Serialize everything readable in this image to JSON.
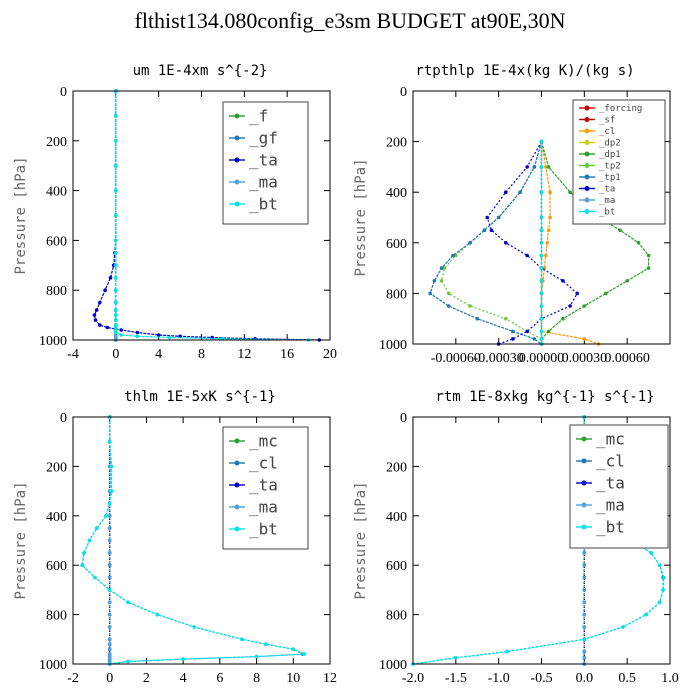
{
  "title": "flthist134.080config_e3sm  BUDGET at90E,30N",
  "chart_data": [
    {
      "type": "line",
      "title": "um  1E-4xm s^{-2}",
      "ylabel": "Pressure [hPa]",
      "xlim": [
        -4,
        20
      ],
      "ylim": [
        1000,
        0
      ],
      "xticks": [
        -4,
        0,
        4,
        8,
        12,
        16,
        20
      ],
      "xtick_labels": [
        "-4",
        "0",
        "4",
        "8",
        "12",
        "16",
        "20"
      ],
      "yticks": [
        0,
        200,
        400,
        600,
        800,
        1000
      ],
      "ytick_labels": [
        "0",
        "200",
        "400",
        "600",
        "800",
        "1000"
      ],
      "legend_position": "top-right",
      "pressure": [
        0,
        100,
        200,
        300,
        400,
        500,
        600,
        650,
        700,
        750,
        800,
        850,
        880,
        900,
        920,
        940,
        950,
        960,
        970,
        980,
        985,
        990,
        995,
        1000
      ],
      "series": [
        {
          "name": "_f",
          "color": "#2ca02c",
          "values": [
            0,
            0,
            0,
            0,
            0,
            0,
            0,
            0,
            0,
            0,
            0,
            0,
            0,
            0,
            0,
            0,
            0,
            0,
            0,
            0,
            0,
            0,
            0,
            0
          ]
        },
        {
          "name": "_gf",
          "color": "#1f77b4",
          "values": [
            0,
            0,
            0,
            0,
            0,
            0,
            0,
            0,
            0,
            0,
            0,
            0,
            0,
            0,
            0,
            0,
            0,
            0,
            0,
            0,
            0,
            0,
            0,
            0
          ]
        },
        {
          "name": "_ta",
          "color": "#0000cc",
          "values": [
            0,
            0,
            0,
            0,
            0,
            0,
            0,
            -0.1,
            -0.2,
            -0.5,
            -1.0,
            -1.5,
            -1.8,
            -2.0,
            -1.9,
            -1.5,
            -0.8,
            0.5,
            2.0,
            4.0,
            6.0,
            9.0,
            13.0,
            19.0
          ]
        },
        {
          "name": "_ma",
          "color": "#4fa3d9",
          "values": [
            0,
            0,
            0,
            0,
            0,
            0,
            0,
            0,
            0,
            0,
            0,
            0,
            0,
            0,
            0,
            0,
            0,
            0,
            0,
            0,
            0,
            0,
            0,
            0
          ]
        },
        {
          "name": "_bt",
          "color": "#00e5e5",
          "values": [
            0,
            0,
            0,
            0,
            0,
            0,
            0,
            0,
            0,
            0,
            0,
            0,
            0,
            0,
            0,
            0,
            0,
            0,
            0,
            0.5,
            2.0,
            5.0,
            10.0,
            18.0
          ]
        }
      ]
    },
    {
      "type": "line",
      "title": "rtpthlp  1E-4x(kg K)/(kg s)",
      "ylabel": "Pressure [hPa]",
      "xlim": [
        -0.0009,
        0.0009
      ],
      "ylim": [
        1000,
        0
      ],
      "xticks": [
        -0.0006,
        -0.0003,
        0,
        0.0003,
        0.0006
      ],
      "xtick_labels": [
        "-0.00060",
        "-0.00030",
        "0.00000",
        "0.00030",
        "0.00060"
      ],
      "yticks": [
        0,
        200,
        400,
        600,
        800,
        1000
      ],
      "ytick_labels": [
        "0",
        "200",
        "400",
        "600",
        "800",
        "1000"
      ],
      "legend_position": "top-right",
      "pressure": [
        200,
        300,
        400,
        500,
        550,
        600,
        650,
        700,
        750,
        800,
        850,
        900,
        950,
        980,
        1000
      ],
      "series": [
        {
          "name": "_forcing",
          "color": "#cc0000",
          "values": [
            0,
            0,
            0,
            0,
            0,
            0,
            0,
            0,
            0,
            0,
            0,
            0,
            0,
            0,
            0
          ]
        },
        {
          "name": "_sf",
          "color": "#cc0000",
          "values": [
            0,
            0,
            0,
            0,
            0,
            0,
            0,
            0,
            0,
            0,
            0,
            0,
            0,
            0,
            0
          ]
        },
        {
          "name": "_cl",
          "color": "#ff9900",
          "values": [
            0,
            3e-05,
            6e-05,
            6e-05,
            5e-05,
            4e-05,
            3e-05,
            2e-05,
            1e-05,
            0,
            0,
            0,
            0,
            0.0003,
            0.0004
          ]
        },
        {
          "name": "_dp2",
          "color": "#cccc00",
          "values": [
            0,
            0,
            0,
            0,
            0,
            0,
            0,
            0,
            0,
            0,
            0,
            0,
            0,
            0,
            0
          ]
        },
        {
          "name": "_dp1",
          "color": "#2ca02c",
          "values": [
            0,
            5e-05,
            0.0002,
            0.0004,
            0.00055,
            0.00068,
            0.00075,
            0.00075,
            0.0006,
            0.00045,
            0.0003,
            0.00015,
            5e-05,
            0,
            0
          ]
        },
        {
          "name": "_tp2",
          "color": "#66cc33",
          "values": [
            0,
            -5e-05,
            -0.00015,
            -0.0003,
            -0.0004,
            -0.0005,
            -0.0006,
            -0.00068,
            -0.0007,
            -0.00065,
            -0.0005,
            -0.00025,
            -0.0001,
            0,
            0
          ]
        },
        {
          "name": "_tp1",
          "color": "#1f77b4",
          "values": [
            0,
            -5e-05,
            -0.00015,
            -0.0003,
            -0.0004,
            -0.0005,
            -0.00062,
            -0.0007,
            -0.00075,
            -0.00078,
            -0.00065,
            -0.00045,
            -0.0002,
            -5e-05,
            0
          ]
        },
        {
          "name": "_ta",
          "color": "#0000cc",
          "values": [
            0,
            -0.0001,
            -0.00025,
            -0.00038,
            -0.00035,
            -0.00025,
            -0.0001,
            0,
            0.00015,
            0.00025,
            0.0002,
            0,
            -0.0001,
            -0.0002,
            -0.0003
          ]
        },
        {
          "name": "_ma",
          "color": "#4fa3d9",
          "values": [
            0,
            0,
            0,
            0,
            0,
            0,
            0,
            0,
            0,
            0,
            0,
            0,
            0,
            0,
            0
          ]
        },
        {
          "name": "_bt",
          "color": "#00e5e5",
          "values": [
            0,
            0,
            0,
            0,
            0,
            0,
            0,
            0,
            0,
            0,
            0,
            0,
            0,
            0,
            0
          ]
        }
      ]
    },
    {
      "type": "line",
      "title": "thlm  1E-5xK s^{-1}",
      "ylabel": "Pressure [hPa]",
      "xlim": [
        -2,
        12
      ],
      "ylim": [
        1000,
        0
      ],
      "xticks": [
        -2,
        0,
        2,
        4,
        6,
        8,
        10,
        12
      ],
      "xtick_labels": [
        "-2",
        "0",
        "2",
        "4",
        "6",
        "8",
        "10",
        "12"
      ],
      "yticks": [
        0,
        200,
        400,
        600,
        800,
        1000
      ],
      "ytick_labels": [
        "0",
        "200",
        "400",
        "600",
        "800",
        "1000"
      ],
      "legend_position": "top-right",
      "pressure": [
        0,
        100,
        200,
        300,
        350,
        400,
        450,
        500,
        550,
        600,
        650,
        700,
        750,
        800,
        850,
        900,
        920,
        940,
        960,
        970,
        980,
        990,
        1000
      ],
      "series": [
        {
          "name": "_mc",
          "color": "#2ca02c",
          "values": [
            0,
            0,
            0,
            0,
            0,
            0,
            0,
            0,
            0,
            0,
            0,
            0,
            0,
            0,
            0,
            0,
            0,
            0,
            0,
            0,
            0,
            0,
            0
          ]
        },
        {
          "name": "_cl",
          "color": "#1f77b4",
          "values": [
            0,
            0,
            0.1,
            0.1,
            0,
            -0.2,
            -0.7,
            -1.1,
            -1.4,
            -1.5,
            -0.8,
            0,
            1.0,
            2.6,
            4.6,
            7.2,
            8.5,
            10.0,
            10.5,
            8.0,
            4.0,
            1.0,
            0
          ]
        },
        {
          "name": "_ta",
          "color": "#0000cc",
          "values": [
            0,
            0,
            0,
            0,
            0,
            0,
            0,
            0,
            0,
            0,
            0,
            0,
            0,
            0,
            0,
            0,
            0,
            0,
            0,
            0,
            0,
            0,
            0
          ]
        },
        {
          "name": "_ma",
          "color": "#4fa3d9",
          "values": [
            0,
            0,
            0,
            0,
            0,
            0,
            0,
            0,
            0,
            0,
            0,
            0,
            0,
            0,
            0,
            0,
            0,
            0,
            0,
            0,
            0,
            0,
            0
          ]
        },
        {
          "name": "_bt",
          "color": "#00e5e5",
          "values": [
            0,
            0,
            0.1,
            0.1,
            0,
            -0.2,
            -0.7,
            -1.1,
            -1.4,
            -1.5,
            -0.8,
            0,
            1.0,
            2.6,
            4.6,
            7.2,
            8.5,
            10.0,
            10.6,
            8.0,
            4.0,
            1.0,
            0
          ]
        }
      ]
    },
    {
      "type": "line",
      "title": "rtm  1E-8xkg kg^{-1} s^{-1}",
      "ylabel": "Pressure [hPa]",
      "xlim": [
        -2.0,
        1.0
      ],
      "ylim": [
        1000,
        0
      ],
      "xticks": [
        -2.0,
        -1.5,
        -1.0,
        -0.5,
        0.0,
        0.5,
        1.0
      ],
      "xtick_labels": [
        "-2.0",
        "-1.5",
        "-1.0",
        "-0.5",
        "0.0",
        "0.5",
        "1.0"
      ],
      "yticks": [
        0,
        200,
        400,
        600,
        800,
        1000
      ],
      "ytick_labels": [
        "0",
        "200",
        "400",
        "600",
        "800",
        "1000"
      ],
      "legend_position": "top-right",
      "pressure": [
        0,
        100,
        150,
        200,
        250,
        300,
        350,
        400,
        450,
        500,
        550,
        600,
        650,
        700,
        750,
        800,
        850,
        900,
        950,
        975,
        1000
      ],
      "series": [
        {
          "name": "_mc",
          "color": "#2ca02c",
          "values": [
            0,
            0,
            0,
            0,
            0,
            0,
            0,
            0,
            0,
            0,
            0,
            0,
            0,
            0,
            0,
            0,
            0,
            0,
            0,
            0,
            0
          ]
        },
        {
          "name": "_cl",
          "color": "#1f77b4",
          "values": [
            0,
            0,
            0.02,
            0.06,
            0.04,
            0.05,
            0.08,
            0.15,
            0.3,
            0.55,
            0.78,
            0.88,
            0.92,
            0.92,
            0.88,
            0.72,
            0.45,
            0,
            -0.9,
            -1.5,
            -2.0
          ]
        },
        {
          "name": "_ta",
          "color": "#0000cc",
          "values": [
            0,
            0,
            0,
            0,
            0,
            0,
            0,
            0,
            0,
            0,
            0,
            0,
            0,
            0,
            0,
            0,
            0,
            0,
            0,
            0,
            0
          ]
        },
        {
          "name": "_ma",
          "color": "#4fa3d9",
          "values": [
            0,
            0,
            0,
            0,
            0,
            0,
            0,
            0,
            0,
            0,
            0,
            0,
            0,
            0,
            0,
            0,
            0,
            0,
            0,
            0,
            0
          ]
        },
        {
          "name": "_bt",
          "color": "#00e5e5",
          "values": [
            0,
            0,
            0.02,
            0.06,
            0.04,
            0.05,
            0.08,
            0.15,
            0.3,
            0.55,
            0.78,
            0.88,
            0.93,
            0.92,
            0.88,
            0.72,
            0.45,
            0,
            -0.9,
            -1.5,
            -2.0
          ]
        }
      ]
    }
  ]
}
